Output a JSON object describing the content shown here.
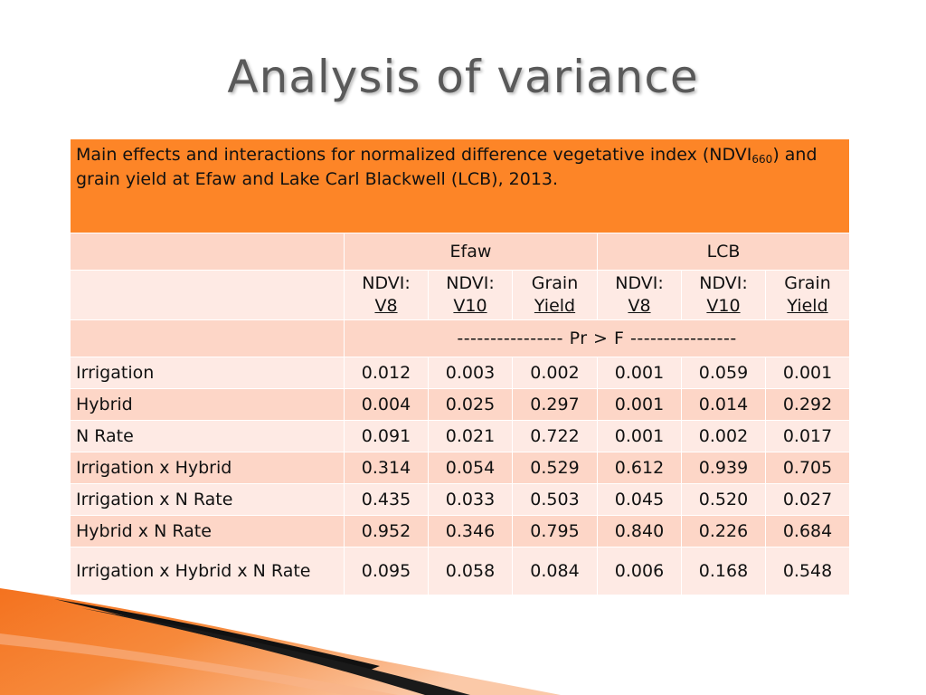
{
  "slide": {
    "title": "Analysis of variance"
  },
  "table": {
    "caption_part1": "Main effects and interactions for normalized difference vegetative index (NDVI",
    "caption_sub": "660",
    "caption_part2": ") and grain yield at Efaw and Lake Carl Blackwell (LCB), 2013.",
    "groups": [
      "Efaw",
      "LCB"
    ],
    "subheaders": [
      {
        "line1": "NDVI:",
        "line2": "V8"
      },
      {
        "line1": "NDVI:",
        "line2": "V10"
      },
      {
        "line1": "Grain",
        "line2": "Yield"
      },
      {
        "line1": "NDVI:",
        "line2": "V8"
      },
      {
        "line1": "NDVI:",
        "line2": "V10"
      },
      {
        "line1": "Grain",
        "line2": "Yield"
      }
    ],
    "prf_label": "---------------- Pr > F ----------------",
    "rows": [
      {
        "label": "Irrigation",
        "values": [
          "0.012",
          "0.003",
          "0.002",
          "0.001",
          "0.059",
          "0.001"
        ]
      },
      {
        "label": "Hybrid",
        "values": [
          "0.004",
          "0.025",
          "0.297",
          "0.001",
          "0.014",
          "0.292"
        ]
      },
      {
        "label": "N Rate",
        "values": [
          "0.091",
          "0.021",
          "0.722",
          "0.001",
          "0.002",
          "0.017"
        ]
      },
      {
        "label": "Irrigation x Hybrid",
        "values": [
          "0.314",
          "0.054",
          "0.529",
          "0.612",
          "0.939",
          "0.705"
        ]
      },
      {
        "label": "Irrigation x N Rate",
        "values": [
          "0.435",
          "0.033",
          "0.503",
          "0.045",
          "0.520",
          "0.027"
        ]
      },
      {
        "label": "Hybrid x N Rate",
        "values": [
          "0.952",
          "0.346",
          "0.795",
          "0.840",
          "0.226",
          "0.684"
        ]
      },
      {
        "label": "Irrigation x Hybrid x N Rate",
        "values": [
          "0.095",
          "0.058",
          "0.084",
          "0.006",
          "0.168",
          "0.548"
        ]
      }
    ]
  },
  "colors": {
    "caption_bg": "#fd8527",
    "row_dark": "#fdd6c7",
    "row_light": "#feeae4",
    "accent_orange": "#f26b1d"
  }
}
